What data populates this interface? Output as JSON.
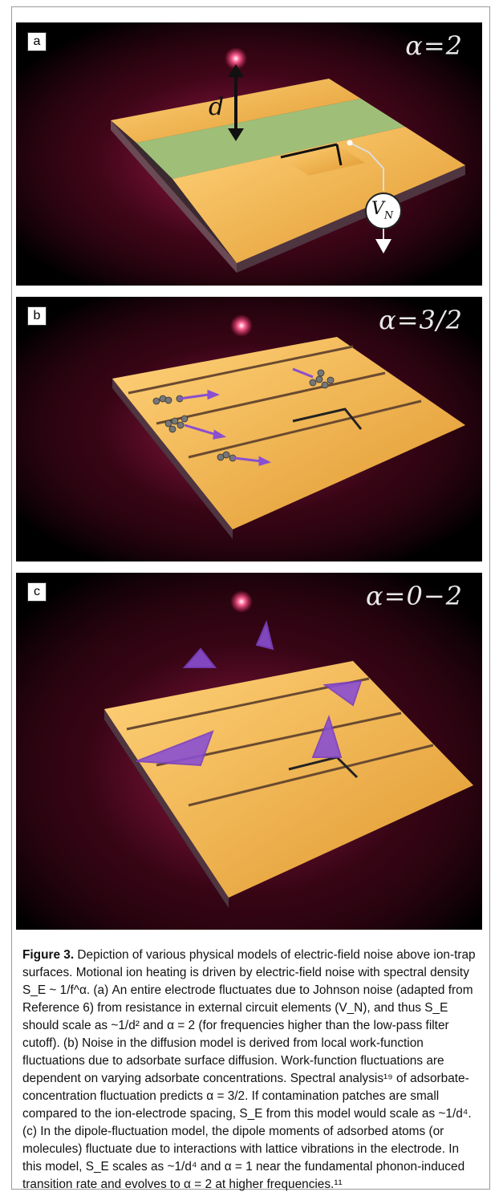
{
  "panels": [
    {
      "letter": "a",
      "alpha": "α=2",
      "d_label": "d",
      "vn_label": "V",
      "vn_sub": "N"
    },
    {
      "letter": "b",
      "alpha": "α=3/2"
    },
    {
      "letter": "c",
      "alpha": "α=0−2"
    }
  ],
  "caption": {
    "fig": "Figure 3.",
    "text": " Depiction of various physical models of electric-field noise above ion-trap surfaces. Motional ion heating is driven by electric-field noise with spectral density S_E ~ 1/f^α. (a) An entire electrode fluctuates due to Johnson noise (adapted from Reference 6) from resistance in external circuit elements (V_N), and thus S_E should scale as ~1/d² and α = 2 (for frequencies higher than the low-pass filter cutoff). (b) Noise in the diffusion model is derived from local work-function fluctuations due to adsorbate surface diffusion. Work-function fluctuations are dependent on varying adsorbate concentrations. Spectral analysis¹⁹ of adsorbate-concentration fluctuation predicts α = 3/2. If contamination patches are small compared to the ion-electrode spacing, S_E from this model would scale as ~1/d⁴. (c) In the dipole-fluctuation model, the dipole moments of adsorbed atoms (or molecules) fluctuate due to interactions with lattice vibrations in the electrode. In this model, S_E scales as ~1/d⁴ and α = 1 near the fundamental phonon-induced transition rate and evolves to α = 2 at higher frequencies.¹¹"
  },
  "colors": {
    "gold": "#f2b64a",
    "green": "#93b26e",
    "glow": "#b01a48",
    "arrow": "#7b3fc2"
  }
}
